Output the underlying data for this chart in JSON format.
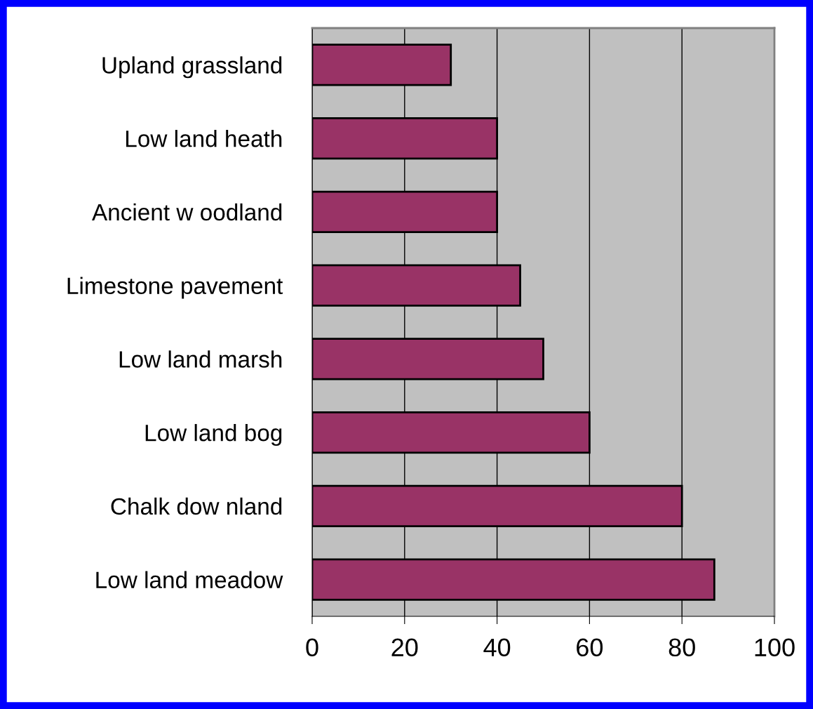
{
  "chart_data": {
    "type": "bar",
    "orientation": "horizontal",
    "categories": [
      "Upland grassland",
      "Low land heath",
      "Ancient w oodland",
      "Limestone pavement",
      "Low land marsh",
      "Low land bog",
      "Chalk dow nland",
      "Low land meadow"
    ],
    "values": [
      30,
      40,
      40,
      45,
      50,
      60,
      80,
      87
    ],
    "color": "#993366",
    "xlim": [
      0,
      100
    ],
    "xticks": [
      0,
      20,
      40,
      60,
      80,
      100
    ],
    "grid": "x"
  }
}
